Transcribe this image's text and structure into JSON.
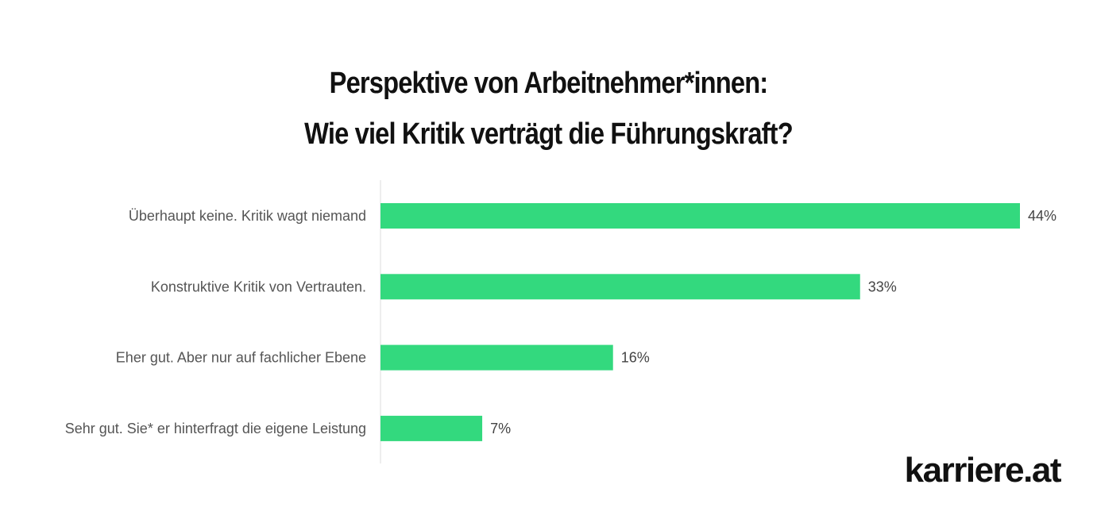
{
  "chart_data": {
    "type": "bar",
    "orientation": "horizontal",
    "title_lines": [
      "Perspektive von Arbeitnehmer*innen:",
      "Wie viel Kritik verträgt die Führungskraft?"
    ],
    "categories": [
      "Überhaupt keine. Kritik wagt niemand",
      "Konstruktive Kritik von Vertrauten.",
      "Eher gut. Aber nur auf fachlicher Ebene",
      "Sehr gut. Sie* er hinterfragt die eigene Leistung"
    ],
    "values": [
      44,
      33,
      16,
      7
    ],
    "value_labels": [
      "44%",
      "33%",
      "16%",
      "7%"
    ],
    "unit": "%",
    "xlim": [
      0,
      44
    ],
    "bar_color": "#33d97e",
    "axis_color": "#dddddd",
    "grid": false,
    "legend": "none"
  },
  "branding": {
    "logo_text": "karriere.at"
  }
}
